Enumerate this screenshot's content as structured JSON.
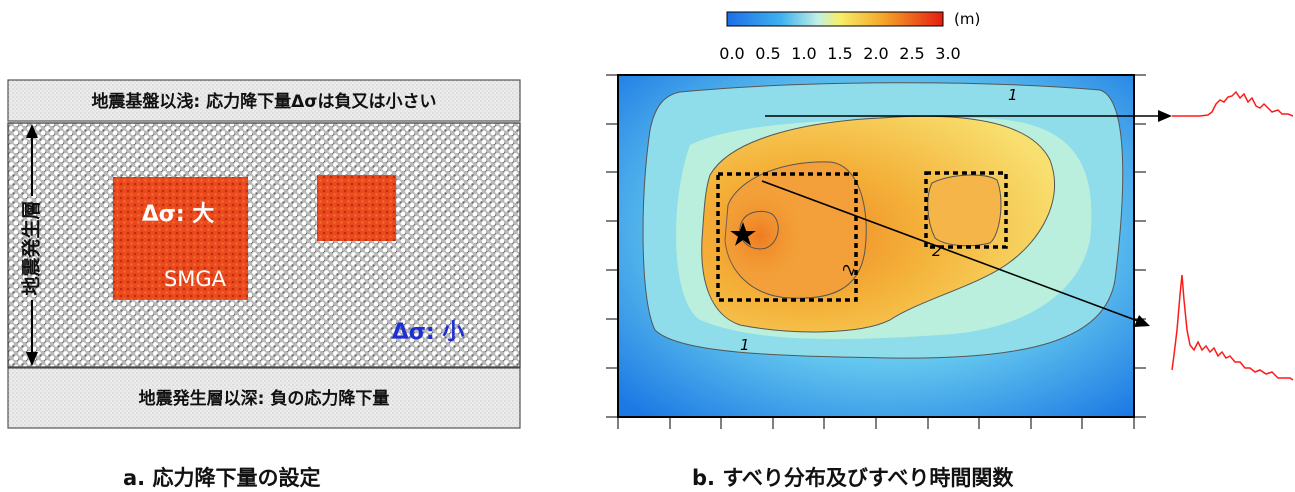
{
  "left_panel": {
    "top_band": "地震基盤以浅: 応力降下量Δσは負又は小さい",
    "bottom_band": "地震発生層以深: 負の応力降下量",
    "vertical_label": "地震発生層",
    "large_asperity_label1": "Δσ: 大",
    "large_asperity_label2": "SMGA",
    "background_label": "Δσ: 小",
    "caption": "a. 応力降下量の設定"
  },
  "right_panel": {
    "colorbar_unit": "(m)",
    "colorbar_ticks": [
      "0.0",
      "0.5",
      "1.0",
      "1.5",
      "2.0",
      "2.5",
      "3.0"
    ],
    "contour_labels": [
      "1",
      "1",
      "2",
      "2"
    ],
    "caption": "b. すべり分布及びすべり時間関数"
  },
  "colors": {
    "asperity": "#e8401c",
    "small_stress_text": "#1f2fd6",
    "stf_line": "#ff1a1a"
  }
}
